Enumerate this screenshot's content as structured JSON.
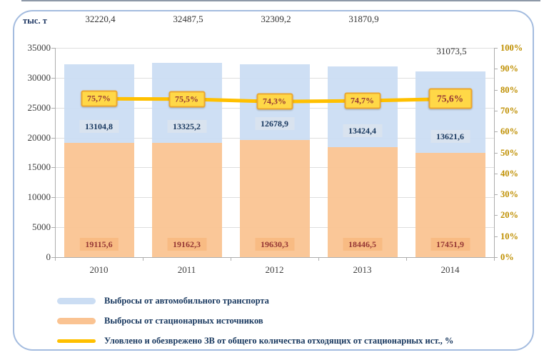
{
  "chart_data": {
    "type": "bar",
    "subtype": "stacked-bars-with-percent-line",
    "categories": [
      "2010",
      "2011",
      "2012",
      "2013",
      "2014"
    ],
    "series": [
      {
        "name": "Выбросы от стационарных источников",
        "type": "bar",
        "stack_position": "bottom",
        "color": "#fac392",
        "label_bg": "#f8bb83",
        "label_color": "#953735",
        "values": [
          19115.6,
          19162.3,
          19630.3,
          18446.5,
          17451.9
        ],
        "labels": [
          "19115,6",
          "19162,3",
          "19630,3",
          "18446,5",
          "17451,9"
        ]
      },
      {
        "name": "Выбросы от автомобильного транспорта",
        "type": "bar",
        "stack_position": "top",
        "color": "#cbddf3",
        "label_bg": "#d9e3ef",
        "label_color": "#17375e",
        "values": [
          13104.8,
          13325.2,
          12678.9,
          13424.4,
          13621.6
        ],
        "labels": [
          "13104,8",
          "13325,2",
          "12678,9",
          "13424,4",
          "13621,6"
        ]
      },
      {
        "name": "Уловлено и обезврежено ЗВ от общего количества отходящих от стационарных ист., %",
        "type": "line",
        "axis": "right",
        "color": "#ffc000",
        "label_bg": "#ffd847",
        "label_border": "#eca72f",
        "label_color": "#953735",
        "values": [
          75.7,
          75.5,
          74.3,
          74.7,
          75.6
        ],
        "labels": [
          "75,7%",
          "75,5%",
          "74,3%",
          "74,7%",
          "75,6%"
        ],
        "last_point_emphasis": true
      }
    ],
    "totals": {
      "values": [
        32220.4,
        32487.5,
        32309.2,
        31870.9,
        31073.5
      ],
      "labels": [
        "32220,4",
        "32487,5",
        "32309,2",
        "31870,9",
        "31073,5"
      ],
      "placement": [
        "top-row",
        "top-row",
        "top-row",
        "top-row",
        "near-bar"
      ]
    },
    "left_axis": {
      "unit": "тыс. т",
      "min": 0,
      "max": 35000,
      "tick_step": 5000,
      "ticks": [
        "35000",
        "30000",
        "25000",
        "20000",
        "15000",
        "10000",
        "5000",
        "0"
      ]
    },
    "right_axis": {
      "min": 0,
      "max": 100,
      "tick_step": 10,
      "ticks": [
        "100%",
        "90%",
        "80%",
        "70%",
        "60%",
        "50%",
        "40%",
        "30%",
        "20%",
        "10%",
        "0%"
      ],
      "color": "#bf8f00"
    },
    "grid": true,
    "legend_position": "bottom-left"
  },
  "legend": {
    "items": [
      {
        "label": "Выбросы от автомобильного транспорта",
        "swatch_color": "#cbddf3",
        "swatch_type": "bar"
      },
      {
        "label": "Выбросы от стационарных источников",
        "swatch_color": "#fac392",
        "swatch_type": "bar"
      },
      {
        "label": "Уловлено и обезврежено ЗВ от общего количества отходящих от стационарных ист., %",
        "swatch_color": "#ffc000",
        "swatch_type": "line"
      }
    ]
  }
}
